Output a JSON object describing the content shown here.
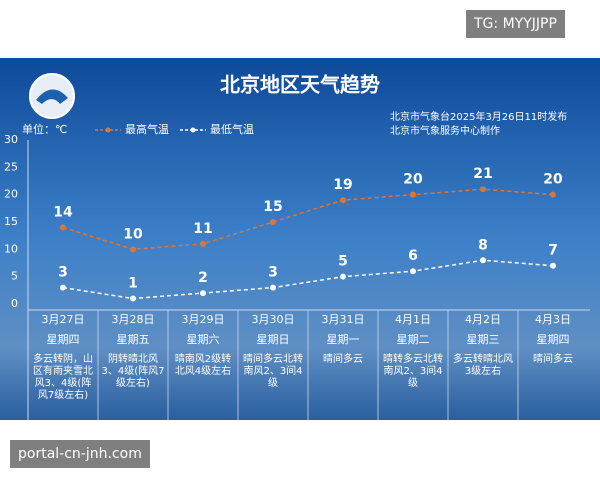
{
  "watermarks": {
    "top": "TG: MYYJJPP",
    "bottom": "portal-cn-jnh.com"
  },
  "chart_data": {
    "type": "line",
    "title": "北京地区天气趋势",
    "source": [
      "北京市气象台2025年3月26日11时发布",
      "北京市气象服务中心制作"
    ],
    "y_label": "单位：℃",
    "categories": [
      "3月27日",
      "3月28日",
      "3月29日",
      "3月30日",
      "3月31日",
      "4月1日",
      "4月2日",
      "4月3日"
    ],
    "weekdays": [
      "星期四",
      "星期五",
      "星期六",
      "星期日",
      "星期一",
      "星期二",
      "星期三",
      "星期四"
    ],
    "weather": [
      "多云转阴，山区有雨夹雪北风3、4级(阵风7级左右)",
      "阴转晴北风3、4级(阵风7级左右)",
      "晴南风2级转北风4级左右",
      "晴间多云北转南风2、3间4级",
      "晴间多云",
      "晴转多云北转南风2、3间4级",
      "多云转晴北风3级左右",
      "晴间多云"
    ],
    "series": [
      {
        "name": "最高气温",
        "color": "#d9773a",
        "values": [
          14,
          10,
          11,
          15,
          19,
          20,
          21,
          20
        ]
      },
      {
        "name": "最低气温",
        "color": "#ffffff",
        "values": [
          3,
          1,
          2,
          3,
          5,
          6,
          8,
          7
        ]
      }
    ],
    "ylim": [
      0,
      30
    ],
    "yticks": [
      0,
      5,
      10,
      15,
      20,
      25,
      30
    ],
    "grid": false
  }
}
